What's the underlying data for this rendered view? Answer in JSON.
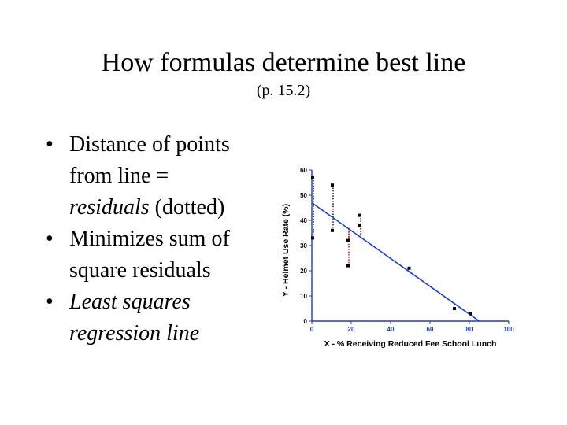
{
  "slide": {
    "title": "How formulas determine best line",
    "subtitle": "(p. 15.2)",
    "bullets": [
      {
        "marker": "•",
        "lines": [
          "Distance of points",
          "from line ="
        ],
        "ital": "residuals",
        "rest": " (dotted)"
      },
      {
        "marker": "•",
        "text": "Minimizes sum of square residuals"
      },
      {
        "marker": "•",
        "text": "Least squares regression line"
      }
    ]
  },
  "chart_data": {
    "type": "scatter",
    "xlabel": "X - % Receiving Reduced Fee School Lunch",
    "ylabel": "Y - Helmet Use Rate (%)",
    "xlim": [
      0,
      100
    ],
    "ylim": [
      0,
      60
    ],
    "xticks": [
      0,
      20,
      40,
      60,
      80,
      100
    ],
    "yticks": [
      0,
      10,
      20,
      30,
      40,
      50,
      60
    ],
    "points": [
      {
        "x": 0,
        "y": 57
      },
      {
        "x": 0,
        "y": 33
      },
      {
        "x": 10,
        "y": 54
      },
      {
        "x": 10,
        "y": 36
      },
      {
        "x": 18,
        "y": 32
      },
      {
        "x": 18,
        "y": 22
      },
      {
        "x": 24,
        "y": 42
      },
      {
        "x": 24,
        "y": 38
      },
      {
        "x": 49,
        "y": 21
      },
      {
        "x": 72,
        "y": 5
      },
      {
        "x": 80,
        "y": 3
      }
    ],
    "regression_line": {
      "x1": 0,
      "y1": 47,
      "x2": 85,
      "y2": 0
    },
    "residuals": [
      {
        "x": 0,
        "y_obs": 57,
        "y_fit": 47,
        "color": "#000000"
      },
      {
        "x": 0,
        "y_obs": 33,
        "y_fit": 47,
        "color": "#000000"
      },
      {
        "x": 10,
        "y_obs": 54,
        "y_fit": 41.5,
        "color": "#000000"
      },
      {
        "x": 10,
        "y_obs": 36,
        "y_fit": 41.5,
        "color": "#000000"
      },
      {
        "x": 18,
        "y_obs": 32,
        "y_fit": 37,
        "color": "#cc0000"
      },
      {
        "x": 18,
        "y_obs": 22,
        "y_fit": 37,
        "color": "#cc0000"
      },
      {
        "x": 24,
        "y_obs": 42,
        "y_fit": 33.7,
        "color": "#cc0000"
      },
      {
        "x": 24,
        "y_obs": 38,
        "y_fit": 33.7,
        "color": "#cc0000"
      }
    ],
    "colors": {
      "line": "#1a3fbf",
      "point": "#000000",
      "axis": "#1a3fbf",
      "label": "#000000"
    }
  }
}
